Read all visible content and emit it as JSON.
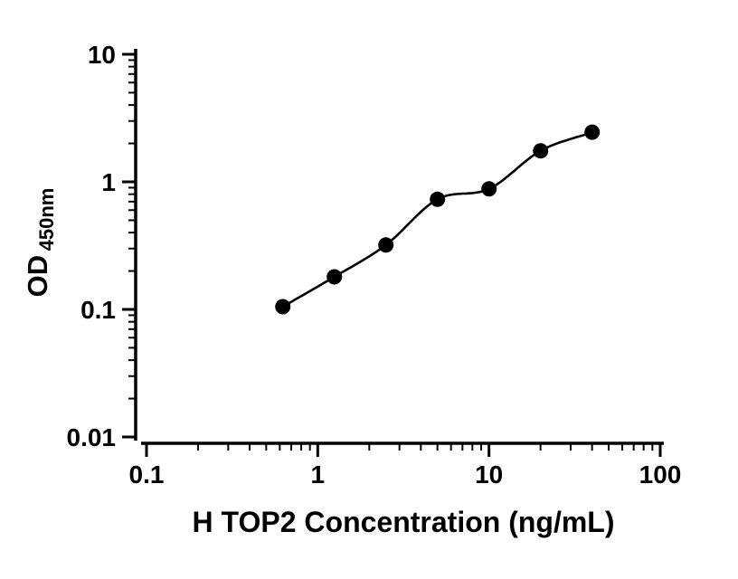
{
  "chart_data": {
    "type": "scatter",
    "title": "",
    "xlabel": "H TOP2 Concentration (ng/mL)",
    "ylabel_main": "OD",
    "ylabel_sub": "450nm",
    "x_scale": "log10",
    "y_scale": "log10",
    "xlim": [
      0.1,
      100
    ],
    "ylim": [
      0.01,
      10
    ],
    "x_major_ticks": [
      0.1,
      1,
      10,
      100
    ],
    "x_major_tick_labels": [
      "0.1",
      "1",
      "10",
      "100"
    ],
    "y_major_ticks": [
      0.01,
      0.1,
      1,
      10
    ],
    "y_major_tick_labels": [
      "0.01",
      "0.1",
      "1",
      "10"
    ],
    "minor_ticks": true,
    "grid": false,
    "legend": false,
    "marker_color": "#000000",
    "line_color": "#000000",
    "background_color": "#ffffff",
    "curve": "smooth fitted line through points",
    "points": [
      {
        "x": 0.625,
        "y": 0.105
      },
      {
        "x": 1.25,
        "y": 0.18
      },
      {
        "x": 2.5,
        "y": 0.32
      },
      {
        "x": 5,
        "y": 0.73
      },
      {
        "x": 10,
        "y": 0.88
      },
      {
        "x": 20,
        "y": 1.75
      },
      {
        "x": 40,
        "y": 2.45
      }
    ]
  }
}
